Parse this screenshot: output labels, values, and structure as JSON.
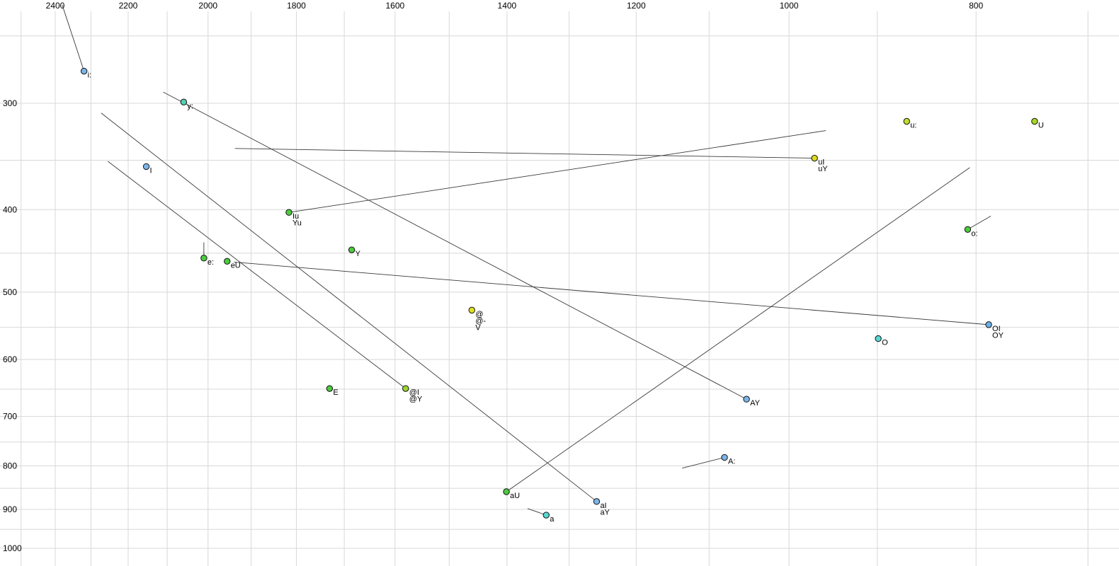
{
  "chart_data": {
    "type": "scatter",
    "title": "",
    "xlabel": "",
    "ylabel": "",
    "description": "Vowel formant plot (F2 top axis reversed, F1 left axis reversed, log-scaled) with monophthong/diphthong points and glide trajectory lines",
    "grid_color": "#d8d8d8",
    "trajectory_color": "#3a3a3a",
    "point_stroke": "#111111",
    "background": "#ffffff",
    "x_axis": {
      "scale": "log10",
      "direction": "reversed",
      "labels": [
        "2400",
        "2200",
        "2000",
        "1800",
        "1600",
        "1400",
        "1200",
        "1000",
        "800"
      ],
      "grid_from": 700,
      "grid_to": 2500,
      "grid_step": 100
    },
    "y_axis": {
      "scale": "log10",
      "direction": "down",
      "labels": [
        "300",
        "400",
        "500",
        "600",
        "700",
        "800",
        "900",
        "1000"
      ],
      "grid_from": 250,
      "grid_to": 1050,
      "grid_step": 50
    },
    "points": [
      {
        "labels": [
          "i:"
        ],
        "f2": 2319,
        "f1": 275,
        "color": "#7cb5e8",
        "glide": {
          "f2": 2380,
          "f1": 230
        }
      },
      {
        "labels": [
          "y:"
        ],
        "f2": 2059,
        "f1": 299,
        "color": "#52d0b4"
      },
      {
        "labels": [
          "u:"
        ],
        "f2": 869,
        "f1": 315,
        "color": "#c3dc2e"
      },
      {
        "labels": [
          "U"
        ],
        "f2": 746,
        "f1": 315,
        "color": "#a6d825"
      },
      {
        "labels": [
          "uI",
          "uY"
        ],
        "f2": 970,
        "f1": 348,
        "color": "#ddd820",
        "glide": {
          "f2": 1937,
          "f1": 339
        }
      },
      {
        "labels": [
          "I"
        ],
        "f2": 2153,
        "f1": 356,
        "color": "#7cb5e8"
      },
      {
        "labels": [
          "Iu",
          "Yu"
        ],
        "f2": 1816,
        "f1": 403,
        "color": "#4ccb3e",
        "glide": {
          "f2": 957,
          "f1": 323
        }
      },
      {
        "labels": [
          "o:"
        ],
        "f2": 808,
        "f1": 422,
        "color": "#4ccb3e",
        "glide": {
          "f2": 786,
          "f1": 407
        }
      },
      {
        "labels": [
          "e:"
        ],
        "f2": 2010,
        "f1": 456,
        "color": "#4ccb3e",
        "glide": {
          "f2": 2010,
          "f1": 437
        }
      },
      {
        "labels": [
          "eU"
        ],
        "f2": 1955,
        "f1": 460,
        "color": "#4ccb3e"
      },
      {
        "labels": [
          "Y"
        ],
        "f2": 1685,
        "f1": 446,
        "color": "#4ccb3e"
      },
      {
        "labels": [
          "@",
          "@-",
          "V"
        ],
        "f2": 1460,
        "f1": 525,
        "color": "#e0e020"
      },
      {
        "labels": [
          "OI",
          "OY"
        ],
        "f2": 788,
        "f1": 546,
        "color": "#6cb0e6",
        "glide": {
          "f2": 1939,
          "f1": 461
        }
      },
      {
        "labels": [
          "O"
        ],
        "f2": 899,
        "f1": 567,
        "color": "#57d8d2"
      },
      {
        "labels": [
          "E"
        ],
        "f2": 1730,
        "f1": 649,
        "color": "#4ccb3e"
      },
      {
        "labels": [
          "@I",
          "@Y"
        ],
        "f2": 1580,
        "f1": 649,
        "color": "#9ad62a",
        "glide": {
          "f2": 2254,
          "f1": 351
        }
      },
      {
        "labels": [
          "AY"
        ],
        "f2": 1052,
        "f1": 668,
        "color": "#7cb5e8",
        "glide": {
          "f2": 2110,
          "f1": 291
        }
      },
      {
        "labels": [
          "A:"
        ],
        "f2": 1080,
        "f1": 782,
        "color": "#7cb5e8",
        "glide": {
          "f2": 1136,
          "f1": 805
        }
      },
      {
        "labels": [
          "aU"
        ],
        "f2": 1401,
        "f1": 858,
        "color": "#4ccb3e",
        "glide": {
          "f2": 806,
          "f1": 357
        }
      },
      {
        "labels": [
          "aI",
          "aY"
        ],
        "f2": 1258,
        "f1": 881,
        "color": "#7cb5e8",
        "glide": {
          "f2": 2272,
          "f1": 308
        }
      },
      {
        "labels": [
          "a"
        ],
        "f2": 1336,
        "f1": 914,
        "color": "#57d8d2",
        "glide": {
          "f2": 1366,
          "f1": 898
        }
      }
    ]
  }
}
